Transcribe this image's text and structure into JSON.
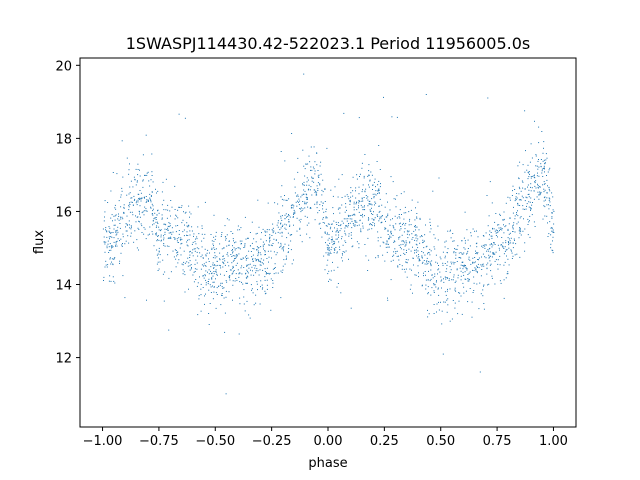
{
  "chart_data": {
    "type": "scatter",
    "title": "1SWASPJ114430.42-522023.1 Period 11956005.0s",
    "xlabel": "phase",
    "ylabel": "flux",
    "xlim": [
      -1.1,
      1.1
    ],
    "ylim": [
      10.1,
      20.2
    ],
    "xticks": [
      -1.0,
      -0.75,
      -0.5,
      -0.25,
      0.0,
      0.25,
      0.5,
      0.75,
      1.0
    ],
    "xtick_labels": [
      "−1.00",
      "−0.75",
      "−0.50",
      "−0.25",
      "0.00",
      "0.25",
      "0.50",
      "0.75",
      "1.00"
    ],
    "yticks": [
      12,
      14,
      16,
      18,
      20
    ],
    "ytick_labels": [
      "12",
      "14",
      "16",
      "18",
      "20"
    ],
    "grid": false,
    "marker_color": "#1f77b4",
    "series": [
      {
        "trend_phase": [
          -1.0,
          -0.95,
          -0.9,
          -0.85,
          -0.8,
          -0.75,
          -0.7,
          -0.65,
          -0.6,
          -0.55,
          -0.5,
          -0.45,
          -0.4,
          -0.35,
          -0.3,
          -0.25,
          -0.2,
          -0.15,
          -0.1,
          -0.05,
          0.0,
          0.05,
          0.1,
          0.15,
          0.2,
          0.25,
          0.3,
          0.35,
          0.4,
          0.45,
          0.5,
          0.55,
          0.6,
          0.65,
          0.7,
          0.75,
          0.8,
          0.85,
          0.9,
          0.95,
          1.0
        ],
        "trend_flux": [
          15.2,
          15.3,
          15.8,
          16.2,
          16.2,
          15.4,
          15.4,
          15.3,
          14.9,
          14.5,
          14.4,
          14.5,
          14.6,
          14.5,
          14.6,
          15.0,
          15.5,
          16.0,
          16.4,
          17.0,
          15.2,
          15.4,
          15.8,
          16.3,
          16.2,
          15.5,
          15.4,
          15.2,
          14.9,
          14.5,
          14.4,
          14.5,
          14.6,
          14.5,
          14.7,
          15.1,
          15.5,
          16.0,
          16.5,
          17.1,
          15.3
        ],
        "scatter_sd": 0.55,
        "n_points": 2600
      }
    ]
  }
}
